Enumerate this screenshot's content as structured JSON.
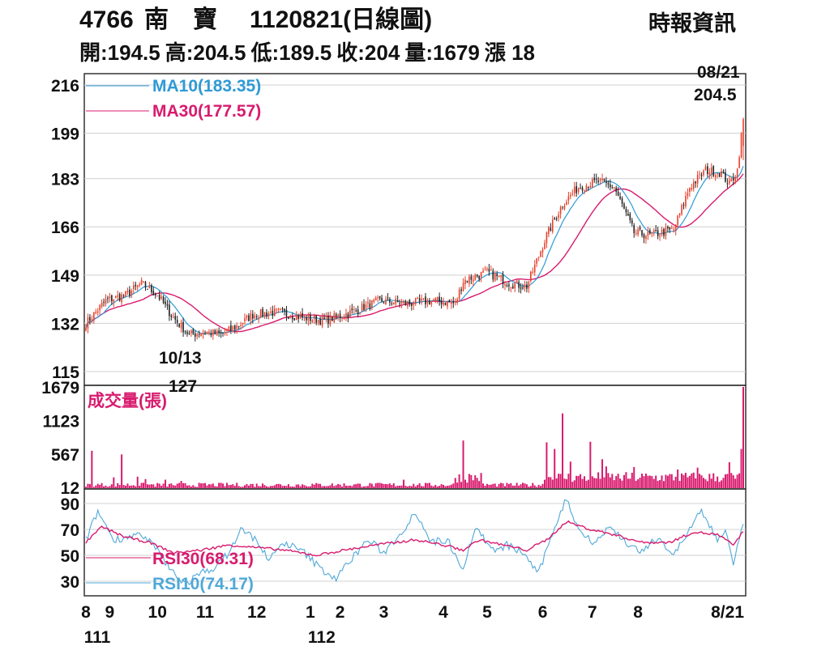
{
  "header": {
    "code": "4766",
    "name": "南　寶",
    "date_chart": "1120821(日線圖)",
    "source": "時報資訊",
    "ohlc": [
      {
        "label": "開:",
        "value": "194.5"
      },
      {
        "label": "高:",
        "value": "204.5"
      },
      {
        "label": "低:",
        "value": "189.5"
      },
      {
        "label": "收:",
        "value": "204"
      },
      {
        "label": "量:",
        "value": "1679"
      },
      {
        "label": "漲",
        "value": " 18"
      }
    ]
  },
  "annotations": {
    "high_date": "08/21",
    "high_value": "204.5",
    "low_date": "10/13",
    "low_value": "127"
  },
  "colors": {
    "up": "#e8402a",
    "down": "#222222",
    "ma10": "#2f9ad6",
    "ma30": "#d81b6e",
    "volume": "#d81b6e",
    "rsi10": "#4fa8d8",
    "rsi30": "#d81b6e",
    "grid": "#d0d0d0"
  },
  "chart_data": [
    {
      "type": "candlestick",
      "panel": "price",
      "ylim": [
        115,
        216
      ],
      "yticks": [
        "216",
        "199",
        "183",
        "166",
        "149",
        "132",
        "115"
      ],
      "ytick_values": [
        216,
        199,
        183,
        166,
        149,
        132,
        115
      ],
      "legend": [
        {
          "name": "MA10(183.35)",
          "color": "#2f9ad6"
        },
        {
          "name": "MA30(177.57)",
          "color": "#d81b6e"
        }
      ],
      "close_anchors": [
        [
          0,
          132
        ],
        [
          10,
          140
        ],
        [
          20,
          142
        ],
        [
          28,
          146
        ],
        [
          36,
          142
        ],
        [
          44,
          134
        ],
        [
          52,
          128
        ],
        [
          60,
          129
        ],
        [
          68,
          128
        ],
        [
          76,
          131
        ],
        [
          84,
          135
        ],
        [
          96,
          136
        ],
        [
          110,
          134
        ],
        [
          120,
          133
        ],
        [
          134,
          136
        ],
        [
          148,
          140
        ],
        [
          162,
          139
        ],
        [
          176,
          140
        ],
        [
          186,
          139
        ],
        [
          190,
          147
        ],
        [
          202,
          150
        ],
        [
          214,
          146
        ],
        [
          222,
          145
        ],
        [
          232,
          163
        ],
        [
          240,
          174
        ],
        [
          248,
          180
        ],
        [
          258,
          182
        ],
        [
          266,
          180
        ],
        [
          276,
          164
        ],
        [
          284,
          163
        ],
        [
          296,
          165
        ],
        [
          304,
          180
        ],
        [
          312,
          186
        ],
        [
          320,
          185
        ],
        [
          324,
          181
        ],
        [
          328,
          186
        ],
        [
          331,
          204
        ]
      ],
      "ma10_end": 183.35,
      "ma30_end": 177.57,
      "last": {
        "open": 194.5,
        "high": 204.5,
        "low": 189.5,
        "close": 204
      }
    },
    {
      "type": "bar",
      "panel": "volume",
      "title": "成交量(張)",
      "ylim": [
        0,
        1679
      ],
      "yticks": [
        "1679",
        "1123",
        "567",
        "12"
      ],
      "ytick_values": [
        1679,
        1123,
        567,
        12
      ],
      "spikes": [
        [
          3,
          620
        ],
        [
          18,
          560
        ],
        [
          14,
          180
        ],
        [
          26,
          190
        ],
        [
          30,
          150
        ],
        [
          40,
          140
        ],
        [
          48,
          120
        ],
        [
          160,
          140
        ],
        [
          190,
          790
        ],
        [
          232,
          760
        ],
        [
          236,
          650
        ],
        [
          240,
          1240
        ],
        [
          244,
          440
        ],
        [
          254,
          770
        ],
        [
          260,
          480
        ],
        [
          262,
          360
        ],
        [
          276,
          350
        ],
        [
          298,
          310
        ],
        [
          308,
          340
        ],
        [
          324,
          430
        ],
        [
          330,
          650
        ],
        [
          331,
          1679
        ]
      ],
      "last_value": 1679
    },
    {
      "type": "line",
      "panel": "rsi",
      "ylim": [
        20,
        100
      ],
      "yticks": [
        "90",
        "70",
        "50",
        "30"
      ],
      "ytick_values": [
        90,
        70,
        50,
        30
      ],
      "legend": [
        {
          "name": "RSI30(68.31)",
          "color": "#d81b6e"
        },
        {
          "name": "RSI10(74.17)",
          "color": "#4fa8d8"
        }
      ],
      "rsi10_anchors": [
        [
          0,
          62
        ],
        [
          6,
          84
        ],
        [
          14,
          62
        ],
        [
          26,
          66
        ],
        [
          34,
          58
        ],
        [
          42,
          40
        ],
        [
          50,
          28
        ],
        [
          58,
          36
        ],
        [
          66,
          42
        ],
        [
          72,
          52
        ],
        [
          78,
          70
        ],
        [
          86,
          62
        ],
        [
          92,
          46
        ],
        [
          100,
          60
        ],
        [
          110,
          52
        ],
        [
          118,
          40
        ],
        [
          126,
          32
        ],
        [
          134,
          48
        ],
        [
          142,
          62
        ],
        [
          150,
          52
        ],
        [
          160,
          70
        ],
        [
          166,
          84
        ],
        [
          174,
          60
        ],
        [
          182,
          62
        ],
        [
          190,
          40
        ],
        [
          196,
          72
        ],
        [
          206,
          52
        ],
        [
          212,
          58
        ],
        [
          220,
          52
        ],
        [
          228,
          36
        ],
        [
          236,
          72
        ],
        [
          242,
          94
        ],
        [
          248,
          70
        ],
        [
          256,
          60
        ],
        [
          264,
          72
        ],
        [
          272,
          60
        ],
        [
          280,
          52
        ],
        [
          288,
          64
        ],
        [
          296,
          50
        ],
        [
          304,
          70
        ],
        [
          310,
          84
        ],
        [
          318,
          62
        ],
        [
          322,
          70
        ],
        [
          326,
          42
        ],
        [
          331,
          74
        ]
      ],
      "rsi30_anchors": [
        [
          0,
          60
        ],
        [
          8,
          72
        ],
        [
          20,
          64
        ],
        [
          32,
          60
        ],
        [
          44,
          52
        ],
        [
          58,
          54
        ],
        [
          72,
          58
        ],
        [
          86,
          56
        ],
        [
          100,
          54
        ],
        [
          116,
          50
        ],
        [
          130,
          54
        ],
        [
          146,
          58
        ],
        [
          166,
          62
        ],
        [
          180,
          58
        ],
        [
          190,
          54
        ],
        [
          198,
          62
        ],
        [
          210,
          58
        ],
        [
          222,
          54
        ],
        [
          232,
          62
        ],
        [
          242,
          76
        ],
        [
          254,
          70
        ],
        [
          266,
          66
        ],
        [
          280,
          60
        ],
        [
          294,
          60
        ],
        [
          306,
          68
        ],
        [
          318,
          66
        ],
        [
          326,
          58
        ],
        [
          331,
          68.31
        ]
      ],
      "last_rsi10": 74.17,
      "last_rsi30": 68.31
    }
  ],
  "x_axis": {
    "months": [
      {
        "label": "8",
        "i": 0
      },
      {
        "label": "9",
        "i": 12
      },
      {
        "label": "10",
        "i": 36
      },
      {
        "label": "11",
        "i": 60
      },
      {
        "label": "12",
        "i": 86
      },
      {
        "label": "1",
        "i": 113
      },
      {
        "label": "2",
        "i": 128
      },
      {
        "label": "3",
        "i": 150
      },
      {
        "label": "4",
        "i": 180
      },
      {
        "label": "5",
        "i": 202
      },
      {
        "label": "6",
        "i": 230
      },
      {
        "label": "7",
        "i": 255
      },
      {
        "label": "8",
        "i": 278
      },
      {
        "label": "8/21",
        "i": 290
      }
    ],
    "years": [
      {
        "label": "111",
        "i": 0
      },
      {
        "label": "112",
        "i": 113
      }
    ]
  }
}
